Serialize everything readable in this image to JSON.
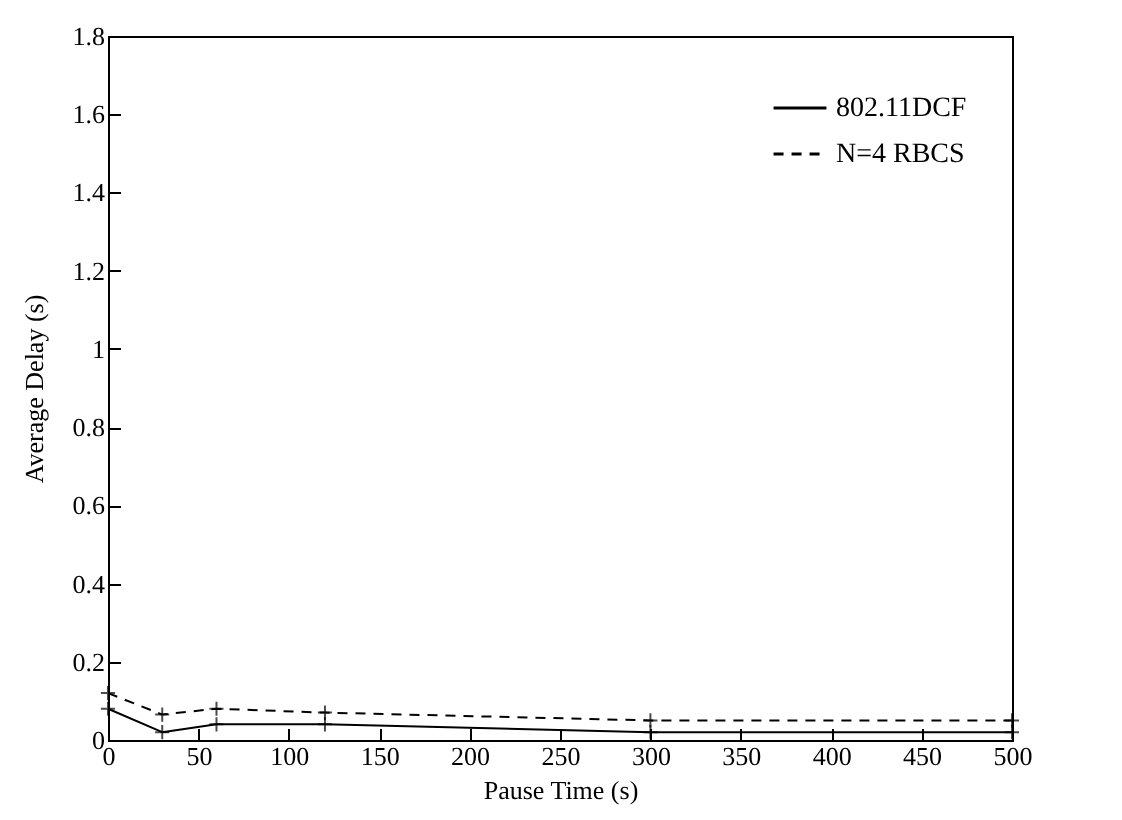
{
  "chart_data": {
    "type": "line",
    "xlabel": "Pause Time (s)",
    "ylabel": "Average Delay (s)",
    "x": [
      0,
      30,
      60,
      120,
      300,
      500
    ],
    "series": [
      {
        "name": "802.11DCF",
        "color": "#000000",
        "line_style": "solid",
        "marker": "cross",
        "values": [
          0.08,
          0.02,
          0.04,
          0.04,
          0.02,
          0.02
        ]
      },
      {
        "name": "N=4 RBCS",
        "color": "#000000",
        "line_style": "dashed",
        "marker": "cross",
        "values": [
          0.12,
          0.065,
          0.08,
          0.07,
          0.05,
          0.05
        ]
      }
    ],
    "xlim": [
      0,
      500
    ],
    "xticks": [
      0,
      50,
      100,
      150,
      200,
      250,
      300,
      350,
      400,
      450,
      500
    ],
    "ylim": [
      0,
      1.8
    ],
    "yticks": [
      0,
      0.2,
      0.4,
      0.6,
      0.8,
      1,
      1.2,
      1.4,
      1.6,
      1.8
    ],
    "grid": false,
    "legend": "top right"
  }
}
